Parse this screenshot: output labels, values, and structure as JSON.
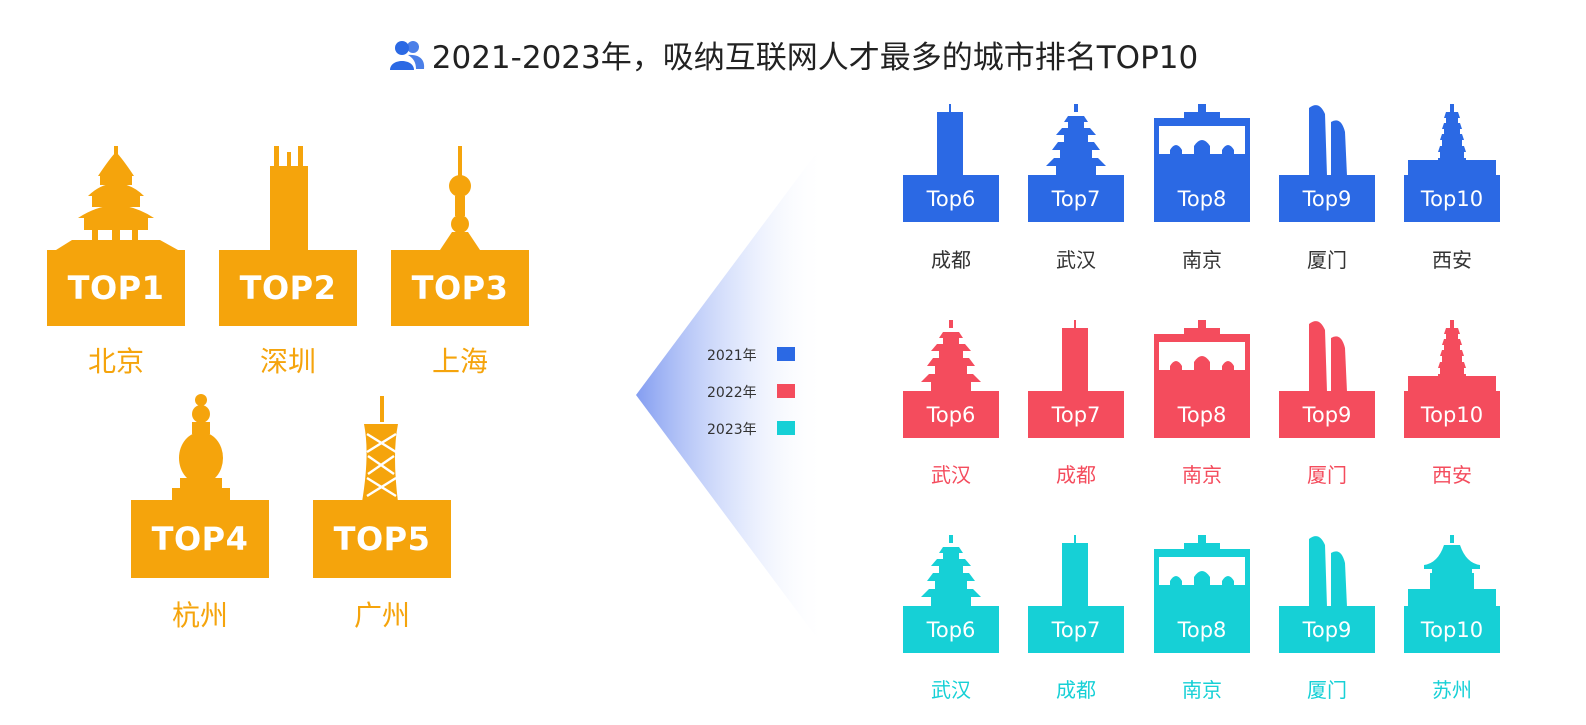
{
  "title": "2021-2023年，吸纳互联网人才最多的城市排名TOP10",
  "colors": {
    "top5": "#f5a40c",
    "y2021": "#2b69e4",
    "y2022": "#f44c5d",
    "y2023": "#16d0d6"
  },
  "top5": [
    {
      "rank": "TOP1",
      "city": "北京",
      "icon": "temple-of-heaven"
    },
    {
      "rank": "TOP2",
      "city": "深圳",
      "icon": "tower"
    },
    {
      "rank": "TOP3",
      "city": "上海",
      "icon": "oriental-pearl-tower"
    },
    {
      "rank": "TOP4",
      "city": "杭州",
      "icon": "pagoda"
    },
    {
      "rank": "TOP5",
      "city": "广州",
      "icon": "canton-tower"
    }
  ],
  "legend": [
    {
      "label": "2021年",
      "color": "#2b69e4"
    },
    {
      "label": "2022年",
      "color": "#f44c5d"
    },
    {
      "label": "2023年",
      "color": "#16d0d6"
    }
  ],
  "rows": [
    {
      "year": "2021年",
      "items": [
        {
          "rank": "Top6",
          "city": "成都"
        },
        {
          "rank": "Top7",
          "city": "武汉"
        },
        {
          "rank": "Top8",
          "city": "南京"
        },
        {
          "rank": "Top9",
          "city": "厦门"
        },
        {
          "rank": "Top10",
          "city": "西安"
        }
      ]
    },
    {
      "year": "2022年",
      "items": [
        {
          "rank": "Top6",
          "city": "武汉"
        },
        {
          "rank": "Top7",
          "city": "成都"
        },
        {
          "rank": "Top8",
          "city": "南京"
        },
        {
          "rank": "Top9",
          "city": "厦门"
        },
        {
          "rank": "Top10",
          "city": "西安"
        }
      ]
    },
    {
      "year": "2023年",
      "items": [
        {
          "rank": "Top6",
          "city": "武汉"
        },
        {
          "rank": "Top7",
          "city": "成都"
        },
        {
          "rank": "Top8",
          "city": "南京"
        },
        {
          "rank": "Top9",
          "city": "厦门"
        },
        {
          "rank": "Top10",
          "city": "苏州"
        }
      ]
    }
  ]
}
